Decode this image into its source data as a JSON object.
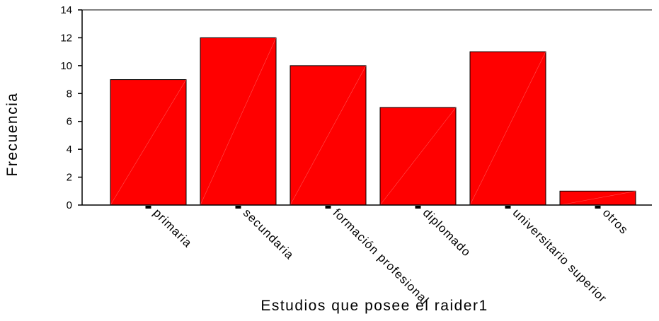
{
  "chart_data": {
    "type": "bar",
    "title": "",
    "xlabel": "Estudios que posee el raider1",
    "ylabel": "Frecuencia",
    "categories": [
      "primaria",
      "secundaria",
      "formación profesional",
      "diplomado",
      "universitario superior",
      "otros"
    ],
    "values": [
      9,
      12,
      10,
      7,
      11,
      1
    ],
    "ylim": [
      0,
      14
    ],
    "yticks": [
      "0",
      "2",
      "4",
      "6",
      "8",
      "10",
      "12",
      "14"
    ],
    "grid": false,
    "legend": "none",
    "bar_color": "#ff0000",
    "bar_outline": "#000000"
  }
}
